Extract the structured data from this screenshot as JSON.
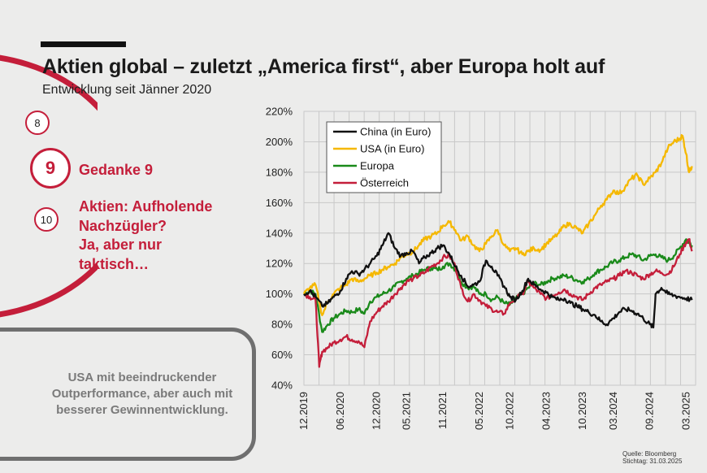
{
  "header": {
    "title": "Aktien global – zuletzt „America first“, aber Europa holt auf",
    "subtitle": "Entwicklung seit Jänner 2020"
  },
  "steps": {
    "prev": "8",
    "current": "9",
    "next": "10",
    "current_label": "Gedanke 9",
    "topic_lines": [
      "Aktien: Aufholende",
      "Nachzügler?",
      "Ja, aber nur",
      "taktisch…"
    ]
  },
  "callout": {
    "lines": [
      "USA mit beeindruckender",
      "Outperformance, aber auch mit",
      "besserer Gewinnentwicklung."
    ]
  },
  "source": {
    "line1": "Quelle: Bloomberg",
    "line2": "Stichtag: 31.03.2025"
  },
  "colors": {
    "accent": "#c41e3a",
    "china": "#111111",
    "usa": "#f5b800",
    "europa": "#1a8a1a",
    "oesterreich": "#c41e3a"
  },
  "chart_data": {
    "type": "line",
    "yticks": [
      "40%",
      "60%",
      "80%",
      "100%",
      "120%",
      "140%",
      "160%",
      "180%",
      "200%",
      "220%"
    ],
    "xticks": [
      "12.2019",
      "06.2020",
      "12.2020",
      "05.2021",
      "11.2021",
      "05.2022",
      "10.2022",
      "04.2023",
      "10.2023",
      "03.2024",
      "09.2024",
      "03.2025"
    ],
    "ylim": [
      40,
      220
    ],
    "grid": true,
    "legend_position": "top-left",
    "series": [
      {
        "name": "China (in Euro)",
        "color": "#111111",
        "values": [
          [
            2019.92,
            100
          ],
          [
            2020.0,
            102
          ],
          [
            2020.08,
            98
          ],
          [
            2020.17,
            92
          ],
          [
            2020.25,
            94
          ],
          [
            2020.33,
            98
          ],
          [
            2020.42,
            102
          ],
          [
            2020.5,
            110
          ],
          [
            2020.58,
            115
          ],
          [
            2020.67,
            113
          ],
          [
            2020.75,
            116
          ],
          [
            2020.83,
            120
          ],
          [
            2020.92,
            125
          ],
          [
            2021.0,
            132
          ],
          [
            2021.08,
            140
          ],
          [
            2021.17,
            130
          ],
          [
            2021.25,
            125
          ],
          [
            2021.33,
            127
          ],
          [
            2021.42,
            128
          ],
          [
            2021.5,
            120
          ],
          [
            2021.58,
            124
          ],
          [
            2021.67,
            127
          ],
          [
            2021.75,
            130
          ],
          [
            2021.83,
            132
          ],
          [
            2021.92,
            126
          ],
          [
            2022.0,
            118
          ],
          [
            2022.08,
            112
          ],
          [
            2022.17,
            105
          ],
          [
            2022.25,
            106
          ],
          [
            2022.33,
            108
          ],
          [
            2022.42,
            122
          ],
          [
            2022.5,
            118
          ],
          [
            2022.58,
            112
          ],
          [
            2022.67,
            105
          ],
          [
            2022.75,
            98
          ],
          [
            2022.83,
            96
          ],
          [
            2022.92,
            102
          ],
          [
            2023.0,
            110
          ],
          [
            2023.08,
            106
          ],
          [
            2023.17,
            103
          ],
          [
            2023.25,
            101
          ],
          [
            2023.33,
            98
          ],
          [
            2023.42,
            96
          ],
          [
            2023.5,
            97
          ],
          [
            2023.58,
            94
          ],
          [
            2023.67,
            92
          ],
          [
            2023.75,
            90
          ],
          [
            2023.83,
            88
          ],
          [
            2023.92,
            86
          ],
          [
            2024.0,
            82
          ],
          [
            2024.08,
            80
          ],
          [
            2024.17,
            84
          ],
          [
            2024.25,
            88
          ],
          [
            2024.33,
            90
          ],
          [
            2024.42,
            89
          ],
          [
            2024.5,
            87
          ],
          [
            2024.58,
            84
          ],
          [
            2024.67,
            80
          ],
          [
            2024.72,
            78
          ],
          [
            2024.75,
            100
          ],
          [
            2024.83,
            104
          ],
          [
            2024.92,
            100
          ],
          [
            2025.0,
            99
          ],
          [
            2025.08,
            98
          ],
          [
            2025.17,
            97
          ],
          [
            2025.25,
            96
          ]
        ]
      },
      {
        "name": "USA (in Euro)",
        "color": "#f5b800",
        "values": [
          [
            2019.92,
            100
          ],
          [
            2020.0,
            104
          ],
          [
            2020.08,
            106
          ],
          [
            2020.17,
            86
          ],
          [
            2020.25,
            95
          ],
          [
            2020.33,
            100
          ],
          [
            2020.42,
            104
          ],
          [
            2020.5,
            106
          ],
          [
            2020.58,
            110
          ],
          [
            2020.67,
            108
          ],
          [
            2020.75,
            110
          ],
          [
            2020.83,
            112
          ],
          [
            2020.92,
            114
          ],
          [
            2021.0,
            116
          ],
          [
            2021.08,
            118
          ],
          [
            2021.17,
            120
          ],
          [
            2021.25,
            124
          ],
          [
            2021.33,
            126
          ],
          [
            2021.42,
            128
          ],
          [
            2021.5,
            132
          ],
          [
            2021.58,
            136
          ],
          [
            2021.67,
            138
          ],
          [
            2021.75,
            140
          ],
          [
            2021.83,
            145
          ],
          [
            2021.92,
            147
          ],
          [
            2022.0,
            142
          ],
          [
            2022.08,
            135
          ],
          [
            2022.17,
            138
          ],
          [
            2022.25,
            132
          ],
          [
            2022.33,
            128
          ],
          [
            2022.42,
            133
          ],
          [
            2022.5,
            138
          ],
          [
            2022.58,
            142
          ],
          [
            2022.67,
            132
          ],
          [
            2022.75,
            128
          ],
          [
            2022.83,
            130
          ],
          [
            2022.92,
            126
          ],
          [
            2023.0,
            128
          ],
          [
            2023.08,
            130
          ],
          [
            2023.17,
            129
          ],
          [
            2023.25,
            133
          ],
          [
            2023.33,
            136
          ],
          [
            2023.42,
            140
          ],
          [
            2023.5,
            145
          ],
          [
            2023.58,
            146
          ],
          [
            2023.67,
            143
          ],
          [
            2023.75,
            140
          ],
          [
            2023.83,
            146
          ],
          [
            2023.92,
            152
          ],
          [
            2024.0,
            158
          ],
          [
            2024.08,
            162
          ],
          [
            2024.17,
            168
          ],
          [
            2024.25,
            166
          ],
          [
            2024.33,
            170
          ],
          [
            2024.42,
            176
          ],
          [
            2024.5,
            178
          ],
          [
            2024.58,
            172
          ],
          [
            2024.67,
            176
          ],
          [
            2024.75,
            180
          ],
          [
            2024.83,
            186
          ],
          [
            2024.92,
            196
          ],
          [
            2025.0,
            200
          ],
          [
            2025.08,
            202
          ],
          [
            2025.12,
            204
          ],
          [
            2025.17,
            192
          ],
          [
            2025.21,
            180
          ],
          [
            2025.25,
            184
          ]
        ]
      },
      {
        "name": "Europa",
        "color": "#1a8a1a",
        "values": [
          [
            2019.92,
            100
          ],
          [
            2020.0,
            102
          ],
          [
            2020.08,
            100
          ],
          [
            2020.17,
            75
          ],
          [
            2020.25,
            80
          ],
          [
            2020.33,
            84
          ],
          [
            2020.42,
            87
          ],
          [
            2020.5,
            89
          ],
          [
            2020.58,
            88
          ],
          [
            2020.67,
            90
          ],
          [
            2020.75,
            87
          ],
          [
            2020.83,
            95
          ],
          [
            2020.92,
            98
          ],
          [
            2021.0,
            100
          ],
          [
            2021.08,
            102
          ],
          [
            2021.17,
            105
          ],
          [
            2021.25,
            108
          ],
          [
            2021.33,
            110
          ],
          [
            2021.42,
            112
          ],
          [
            2021.5,
            114
          ],
          [
            2021.58,
            116
          ],
          [
            2021.67,
            117
          ],
          [
            2021.75,
            116
          ],
          [
            2021.83,
            118
          ],
          [
            2021.92,
            120
          ],
          [
            2022.0,
            116
          ],
          [
            2022.08,
            108
          ],
          [
            2022.17,
            104
          ],
          [
            2022.25,
            105
          ],
          [
            2022.33,
            100
          ],
          [
            2022.42,
            100
          ],
          [
            2022.5,
            96
          ],
          [
            2022.58,
            98
          ],
          [
            2022.67,
            94
          ],
          [
            2022.75,
            93
          ],
          [
            2022.83,
            97
          ],
          [
            2022.92,
            100
          ],
          [
            2023.0,
            104
          ],
          [
            2023.08,
            107
          ],
          [
            2023.17,
            106
          ],
          [
            2023.25,
            108
          ],
          [
            2023.33,
            110
          ],
          [
            2023.42,
            111
          ],
          [
            2023.5,
            112
          ],
          [
            2023.58,
            111
          ],
          [
            2023.67,
            109
          ],
          [
            2023.75,
            108
          ],
          [
            2023.83,
            110
          ],
          [
            2023.92,
            114
          ],
          [
            2024.0,
            116
          ],
          [
            2024.08,
            118
          ],
          [
            2024.17,
            121
          ],
          [
            2024.25,
            122
          ],
          [
            2024.33,
            124
          ],
          [
            2024.42,
            126
          ],
          [
            2024.5,
            125
          ],
          [
            2024.58,
            122
          ],
          [
            2024.67,
            125
          ],
          [
            2024.75,
            126
          ],
          [
            2024.83,
            124
          ],
          [
            2024.92,
            122
          ],
          [
            2025.0,
            125
          ],
          [
            2025.08,
            130
          ],
          [
            2025.17,
            136
          ],
          [
            2025.21,
            134
          ],
          [
            2025.25,
            132
          ]
        ]
      },
      {
        "name": "Österreich",
        "color": "#c41e3a",
        "values": [
          [
            2019.92,
            100
          ],
          [
            2020.0,
            98
          ],
          [
            2020.08,
            96
          ],
          [
            2020.13,
            52
          ],
          [
            2020.17,
            62
          ],
          [
            2020.25,
            65
          ],
          [
            2020.33,
            68
          ],
          [
            2020.42,
            70
          ],
          [
            2020.5,
            72
          ],
          [
            2020.58,
            70
          ],
          [
            2020.67,
            69
          ],
          [
            2020.75,
            65
          ],
          [
            2020.83,
            82
          ],
          [
            2020.92,
            88
          ],
          [
            2021.0,
            92
          ],
          [
            2021.08,
            95
          ],
          [
            2021.17,
            100
          ],
          [
            2021.25,
            104
          ],
          [
            2021.33,
            108
          ],
          [
            2021.42,
            110
          ],
          [
            2021.5,
            112
          ],
          [
            2021.58,
            114
          ],
          [
            2021.67,
            118
          ],
          [
            2021.75,
            120
          ],
          [
            2021.83,
            124
          ],
          [
            2021.92,
            125
          ],
          [
            2022.0,
            118
          ],
          [
            2022.08,
            104
          ],
          [
            2022.17,
            95
          ],
          [
            2022.25,
            100
          ],
          [
            2022.33,
            96
          ],
          [
            2022.42,
            92
          ],
          [
            2022.5,
            90
          ],
          [
            2022.58,
            88
          ],
          [
            2022.67,
            87
          ],
          [
            2022.75,
            94
          ],
          [
            2022.92,
            100
          ],
          [
            2023.0,
            108
          ],
          [
            2023.08,
            104
          ],
          [
            2023.17,
            100
          ],
          [
            2023.25,
            97
          ],
          [
            2023.33,
            99
          ],
          [
            2023.42,
            101
          ],
          [
            2023.5,
            103
          ],
          [
            2023.58,
            100
          ],
          [
            2023.67,
            98
          ],
          [
            2023.75,
            96
          ],
          [
            2023.83,
            100
          ],
          [
            2023.92,
            104
          ],
          [
            2024.0,
            106
          ],
          [
            2024.08,
            108
          ],
          [
            2024.17,
            110
          ],
          [
            2024.25,
            112
          ],
          [
            2024.33,
            115
          ],
          [
            2024.42,
            114
          ],
          [
            2024.5,
            112
          ],
          [
            2024.58,
            110
          ],
          [
            2024.67,
            113
          ],
          [
            2024.75,
            115
          ],
          [
            2024.83,
            114
          ],
          [
            2024.92,
            113
          ],
          [
            2025.0,
            118
          ],
          [
            2025.08,
            126
          ],
          [
            2025.17,
            134
          ],
          [
            2025.21,
            136
          ],
          [
            2025.25,
            128
          ]
        ]
      }
    ]
  }
}
